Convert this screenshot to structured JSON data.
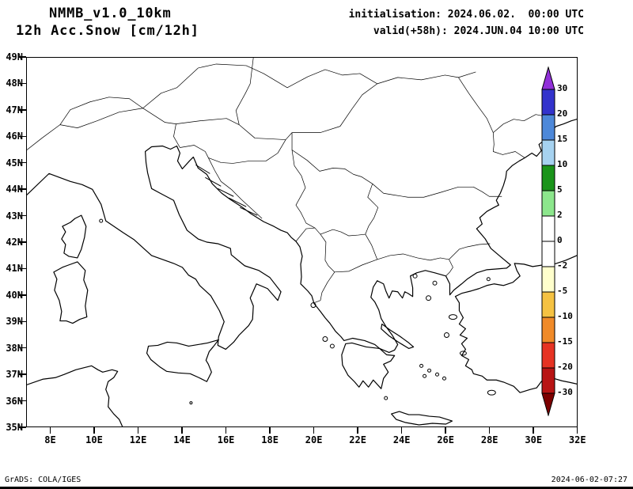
{
  "header": {
    "model_title": "NMMB_v1.0_10km",
    "field_title": "12h Acc.Snow [cm/12h]",
    "init_line": "initialisation: 2024.06.02.  00:00 UTC",
    "valid_line": "valid(+58h): 2024.JUN.04 10:00 UTC"
  },
  "map": {
    "lat_labels": [
      "49N",
      "48N",
      "47N",
      "46N",
      "45N",
      "44N",
      "43N",
      "42N",
      "41N",
      "40N",
      "39N",
      "38N",
      "37N",
      "36N",
      "35N"
    ],
    "lon_labels": [
      "8E",
      "10E",
      "12E",
      "14E",
      "16E",
      "18E",
      "20E",
      "22E",
      "24E",
      "26E",
      "28E",
      "30E",
      "32E"
    ]
  },
  "colorbar": {
    "tick_labels": [
      "30",
      "20",
      "15",
      "10",
      "5",
      "2",
      "0",
      "-2",
      "-5",
      "-10",
      "-15",
      "-20",
      "-30"
    ],
    "arrow_top_color": "#9130d9",
    "arrow_bottom_color": "#7d0000",
    "segment_colors": [
      "#3333cc",
      "#4d88d9",
      "#a6d2f0",
      "#1a941a",
      "#8ce68c",
      "#ffffff",
      "#ffffff",
      "#ffffcc",
      "#f5c242",
      "#f08a28",
      "#e63323",
      "#b81414"
    ]
  },
  "footer": {
    "credit": "GrADS: COLA/IGES",
    "timestamp": "2024-06-02-07:27"
  },
  "chart_data": {
    "type": "map",
    "title": "NMMB_v1.0_10km 12h Acc.Snow [cm/12h]",
    "lon_range": [
      "8E",
      "32E"
    ],
    "lat_range": [
      "35N",
      "49N"
    ],
    "colorbar_levels_cm": [
      30,
      20,
      15,
      10,
      5,
      2,
      0,
      -2,
      -5,
      -10,
      -15,
      -20,
      -30
    ],
    "shaded_field": "no shaded snow areas visible (map interior is blank/white)"
  }
}
